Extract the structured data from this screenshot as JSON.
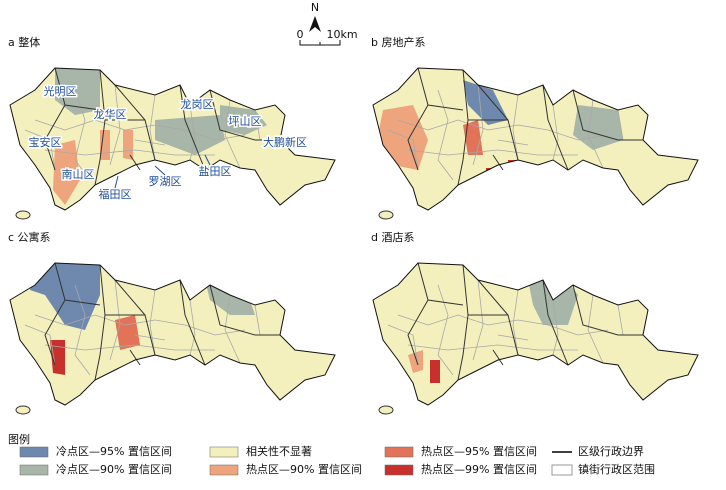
{
  "north": "N",
  "scale": {
    "start": "0",
    "end": "10km"
  },
  "panels": [
    {
      "label": "a 整体",
      "districts": [
        "光明区",
        "龙华区",
        "龙岗区",
        "坪山区",
        "宝安区",
        "大鹏新区",
        "南山区",
        "福田区",
        "罗湖区",
        "盐田区"
      ]
    },
    {
      "label": "b 房地产系"
    },
    {
      "label": "c 公寓系"
    },
    {
      "label": "d 酒店系"
    }
  ],
  "legend": {
    "title": "图例",
    "items": [
      {
        "label": "冷点区—95% 置信区间",
        "color": "#6f88ad",
        "symbol": "patch"
      },
      {
        "label": "相关性不显著",
        "color": "#f3f0bd",
        "symbol": "patch"
      },
      {
        "label": "热点区—95% 置信区间",
        "color": "#e27258",
        "symbol": "patch"
      },
      {
        "label": "区级行政边界",
        "color": "#000000",
        "symbol": "line"
      },
      {
        "label": "冷点区—90% 置信区间",
        "color": "#a7b6a8",
        "symbol": "patch"
      },
      {
        "label": "热点区—90% 置信区间",
        "color": "#eea57e",
        "symbol": "patch"
      },
      {
        "label": "热点区—99% 置信区间",
        "color": "#c8302c",
        "symbol": "patch"
      },
      {
        "label": "镇街行政区范围",
        "color": "#999999",
        "symbol": "box"
      }
    ]
  }
}
